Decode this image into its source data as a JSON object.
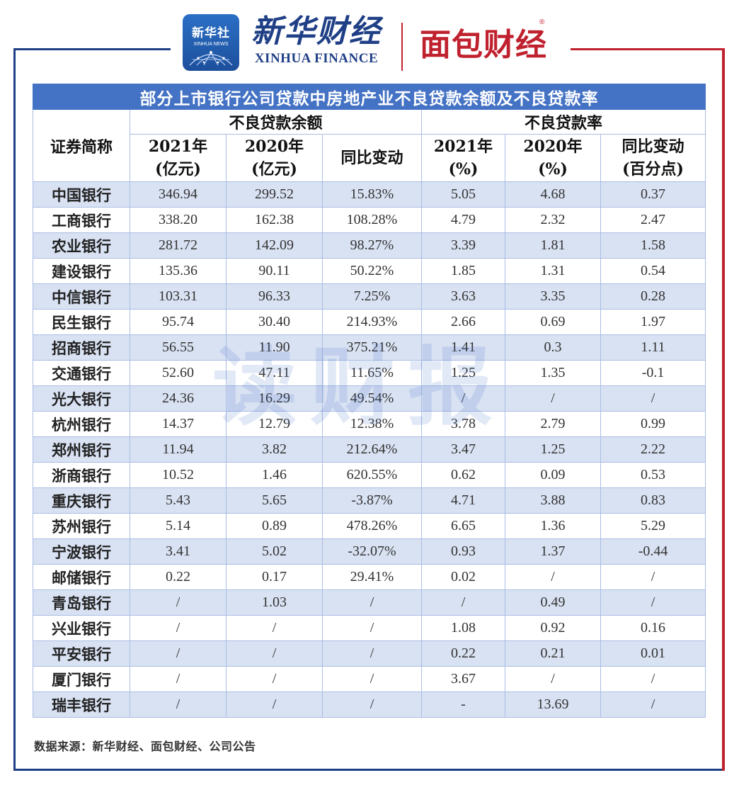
{
  "header": {
    "xinhuashe_logo_cn": "新华社",
    "xinhuashe_logo_en": "XINHUA NEWS",
    "xinhua_finance_cn": "新华财经",
    "xinhua_finance_en": "XINHUA FINANCE",
    "mianbao_finance": "面包财经",
    "registered_mark": "®"
  },
  "table": {
    "title": "部分上市银行公司贷款中房地产业不良贷款余额及不良贷款率",
    "stub_header": "证券简称",
    "group_headers": [
      "不良贷款余额",
      "不良贷款率"
    ],
    "sub_headers": [
      {
        "line1": "2021年",
        "line2": "(亿元)"
      },
      {
        "line1": "2020年",
        "line2": "(亿元)"
      },
      {
        "line1": "同比变动",
        "line2": ""
      },
      {
        "line1": "2021年",
        "line2": "(%)"
      },
      {
        "line1": "2020年",
        "line2": "(%)"
      },
      {
        "line1": "同比变动",
        "line2": "(百分点)"
      }
    ],
    "rows": [
      [
        "中国银行",
        "346.94",
        "299.52",
        "15.83%",
        "5.05",
        "4.68",
        "0.37"
      ],
      [
        "工商银行",
        "338.20",
        "162.38",
        "108.28%",
        "4.79",
        "2.32",
        "2.47"
      ],
      [
        "农业银行",
        "281.72",
        "142.09",
        "98.27%",
        "3.39",
        "1.81",
        "1.58"
      ],
      [
        "建设银行",
        "135.36",
        "90.11",
        "50.22%",
        "1.85",
        "1.31",
        "0.54"
      ],
      [
        "中信银行",
        "103.31",
        "96.33",
        "7.25%",
        "3.63",
        "3.35",
        "0.28"
      ],
      [
        "民生银行",
        "95.74",
        "30.40",
        "214.93%",
        "2.66",
        "0.69",
        "1.97"
      ],
      [
        "招商银行",
        "56.55",
        "11.90",
        "375.21%",
        "1.41",
        "0.3",
        "1.11"
      ],
      [
        "交通银行",
        "52.60",
        "47.11",
        "11.65%",
        "1.25",
        "1.35",
        "-0.1"
      ],
      [
        "光大银行",
        "24.36",
        "16.29",
        "49.54%",
        "/",
        "/",
        "/"
      ],
      [
        "杭州银行",
        "14.37",
        "12.79",
        "12.38%",
        "3.78",
        "2.79",
        "0.99"
      ],
      [
        "郑州银行",
        "11.94",
        "3.82",
        "212.64%",
        "3.47",
        "1.25",
        "2.22"
      ],
      [
        "浙商银行",
        "10.52",
        "1.46",
        "620.55%",
        "0.62",
        "0.09",
        "0.53"
      ],
      [
        "重庆银行",
        "5.43",
        "5.65",
        "-3.87%",
        "4.71",
        "3.88",
        "0.83"
      ],
      [
        "苏州银行",
        "5.14",
        "0.89",
        "478.26%",
        "6.65",
        "1.36",
        "5.29"
      ],
      [
        "宁波银行",
        "3.41",
        "5.02",
        "-32.07%",
        "0.93",
        "1.37",
        "-0.44"
      ],
      [
        "邮储银行",
        "0.22",
        "0.17",
        "29.41%",
        "0.02",
        "/",
        "/"
      ],
      [
        "青岛银行",
        "/",
        "1.03",
        "/",
        "/",
        "0.49",
        "/"
      ],
      [
        "兴业银行",
        "/",
        "/",
        "/",
        "1.08",
        "0.92",
        "0.16"
      ],
      [
        "平安银行",
        "/",
        "/",
        "/",
        "0.22",
        "0.21",
        "0.01"
      ],
      [
        "厦门银行",
        "/",
        "/",
        "/",
        "3.67",
        "/",
        "/"
      ],
      [
        "瑞丰银行",
        "/",
        "/",
        "/",
        "-",
        "13.69",
        "/"
      ]
    ]
  },
  "watermark": "读财报",
  "source_note": "数据来源：新华财经、面包财经、公司公告",
  "colors": {
    "title_bg": "#4472c4",
    "band_bg": "#d9e2f3",
    "frame_blue": "#1f3f86",
    "frame_red": "#c0212e",
    "border": "#a9bde4"
  }
}
